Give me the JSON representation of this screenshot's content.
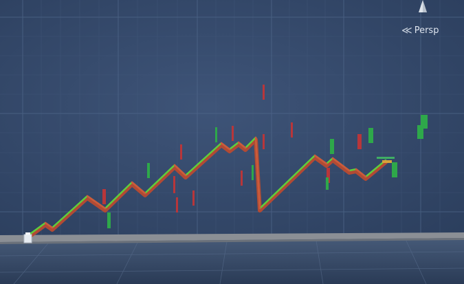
{
  "scene_view": {
    "projection_label": "Persp",
    "projection_icon": "chevron-left-icon",
    "gizmo_icon": "axis-cone-icon"
  },
  "colors": {
    "background": "#34496a",
    "grid": "#4a6080",
    "floor": "#8a8f96",
    "rising_segment": "#5fcf3b",
    "falling_segment": "#c4553a",
    "bull_flag": "#2ea84a",
    "bear_flag": "#b8363a"
  }
}
